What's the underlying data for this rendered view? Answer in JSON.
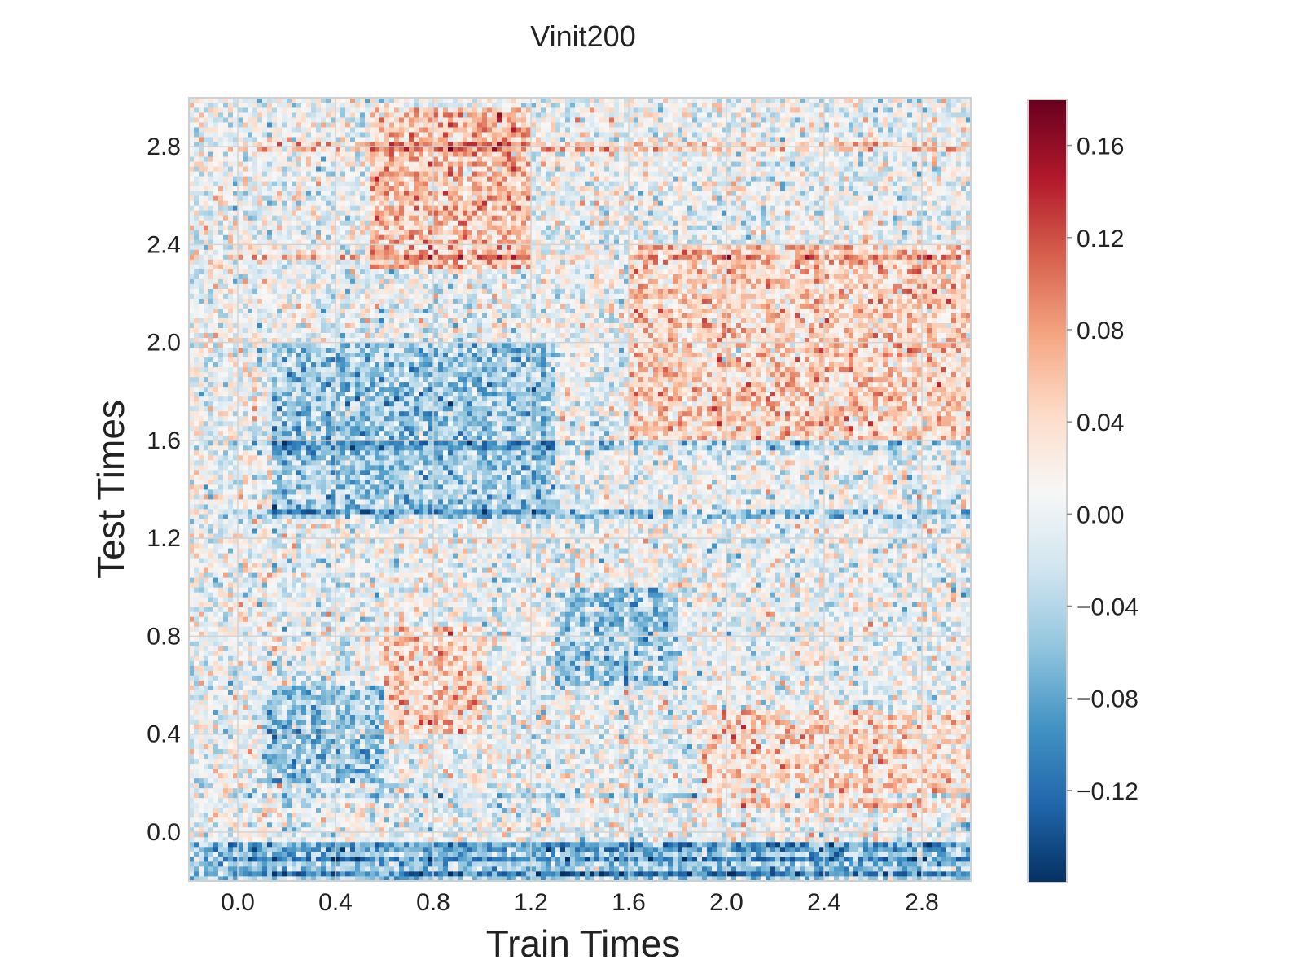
{
  "chart_data": {
    "type": "heatmap",
    "title": "Vinit200",
    "xlabel": "Train Times",
    "ylabel": "Test Times",
    "xlim": [
      -0.2,
      3.0
    ],
    "ylim": [
      -0.2,
      3.0
    ],
    "x_ticks": [
      0.0,
      0.4,
      0.8,
      1.2,
      1.6,
      2.0,
      2.4,
      2.8
    ],
    "x_tick_labels": [
      "0.0",
      "0.4",
      "0.8",
      "1.2",
      "1.6",
      "2.0",
      "2.4",
      "2.8"
    ],
    "y_ticks": [
      0.0,
      0.4,
      0.8,
      1.2,
      1.6,
      2.0,
      2.4,
      2.8
    ],
    "y_tick_labels": [
      "0.0",
      "0.4",
      "0.8",
      "1.2",
      "1.6",
      "2.0",
      "2.4",
      "2.8"
    ],
    "grid": true,
    "colormap": "RdBu_r",
    "colorbar": {
      "min": -0.16,
      "max": 0.18,
      "ticks": [
        0.16,
        0.12,
        0.08,
        0.04,
        0.0,
        -0.04,
        -0.08,
        -0.12
      ],
      "tick_labels": [
        "0.16",
        "0.12",
        "0.08",
        "0.04",
        "0.00",
        "−0.04",
        "−0.08",
        "−0.12"
      ]
    },
    "grid_resolution": {
      "n_train": 160,
      "n_test": 160
    },
    "approximate_regions": [
      {
        "train": [
          -0.2,
          3.0
        ],
        "test": [
          -0.2,
          -0.05
        ],
        "mean": -0.05,
        "pattern": "horizontal blue bands"
      },
      {
        "train": [
          0.15,
          1.3
        ],
        "test": [
          1.3,
          2.0
        ],
        "mean": -0.05
      },
      {
        "train": [
          0.1,
          0.6
        ],
        "test": [
          0.2,
          0.6
        ],
        "mean": -0.05
      },
      {
        "train": [
          1.3,
          1.8
        ],
        "test": [
          0.6,
          1.0
        ],
        "mean": -0.045
      },
      {
        "train": [
          0.55,
          1.2
        ],
        "test": [
          2.3,
          2.95
        ],
        "mean": 0.055
      },
      {
        "train": [
          0.6,
          1.0
        ],
        "test": [
          0.4,
          0.85
        ],
        "mean": 0.045
      },
      {
        "train": [
          1.6,
          3.0
        ],
        "test": [
          1.6,
          2.4
        ],
        "mean": 0.045
      },
      {
        "train": [
          1.9,
          3.0
        ],
        "test": [
          0.1,
          0.5
        ],
        "mean": 0.04
      }
    ],
    "horizontal_band_values": [
      {
        "test": -0.17,
        "value": -0.08
      },
      {
        "test": -0.11,
        "value": -0.07
      },
      {
        "test": -0.06,
        "value": -0.05
      },
      {
        "test": 0.15,
        "value": -0.06
      },
      {
        "test": 1.3,
        "value": -0.07
      },
      {
        "test": 1.58,
        "value": -0.05
      },
      {
        "test": 2.35,
        "value": 0.06
      },
      {
        "test": 2.8,
        "value": 0.06
      }
    ],
    "noise_sd": 0.035
  }
}
